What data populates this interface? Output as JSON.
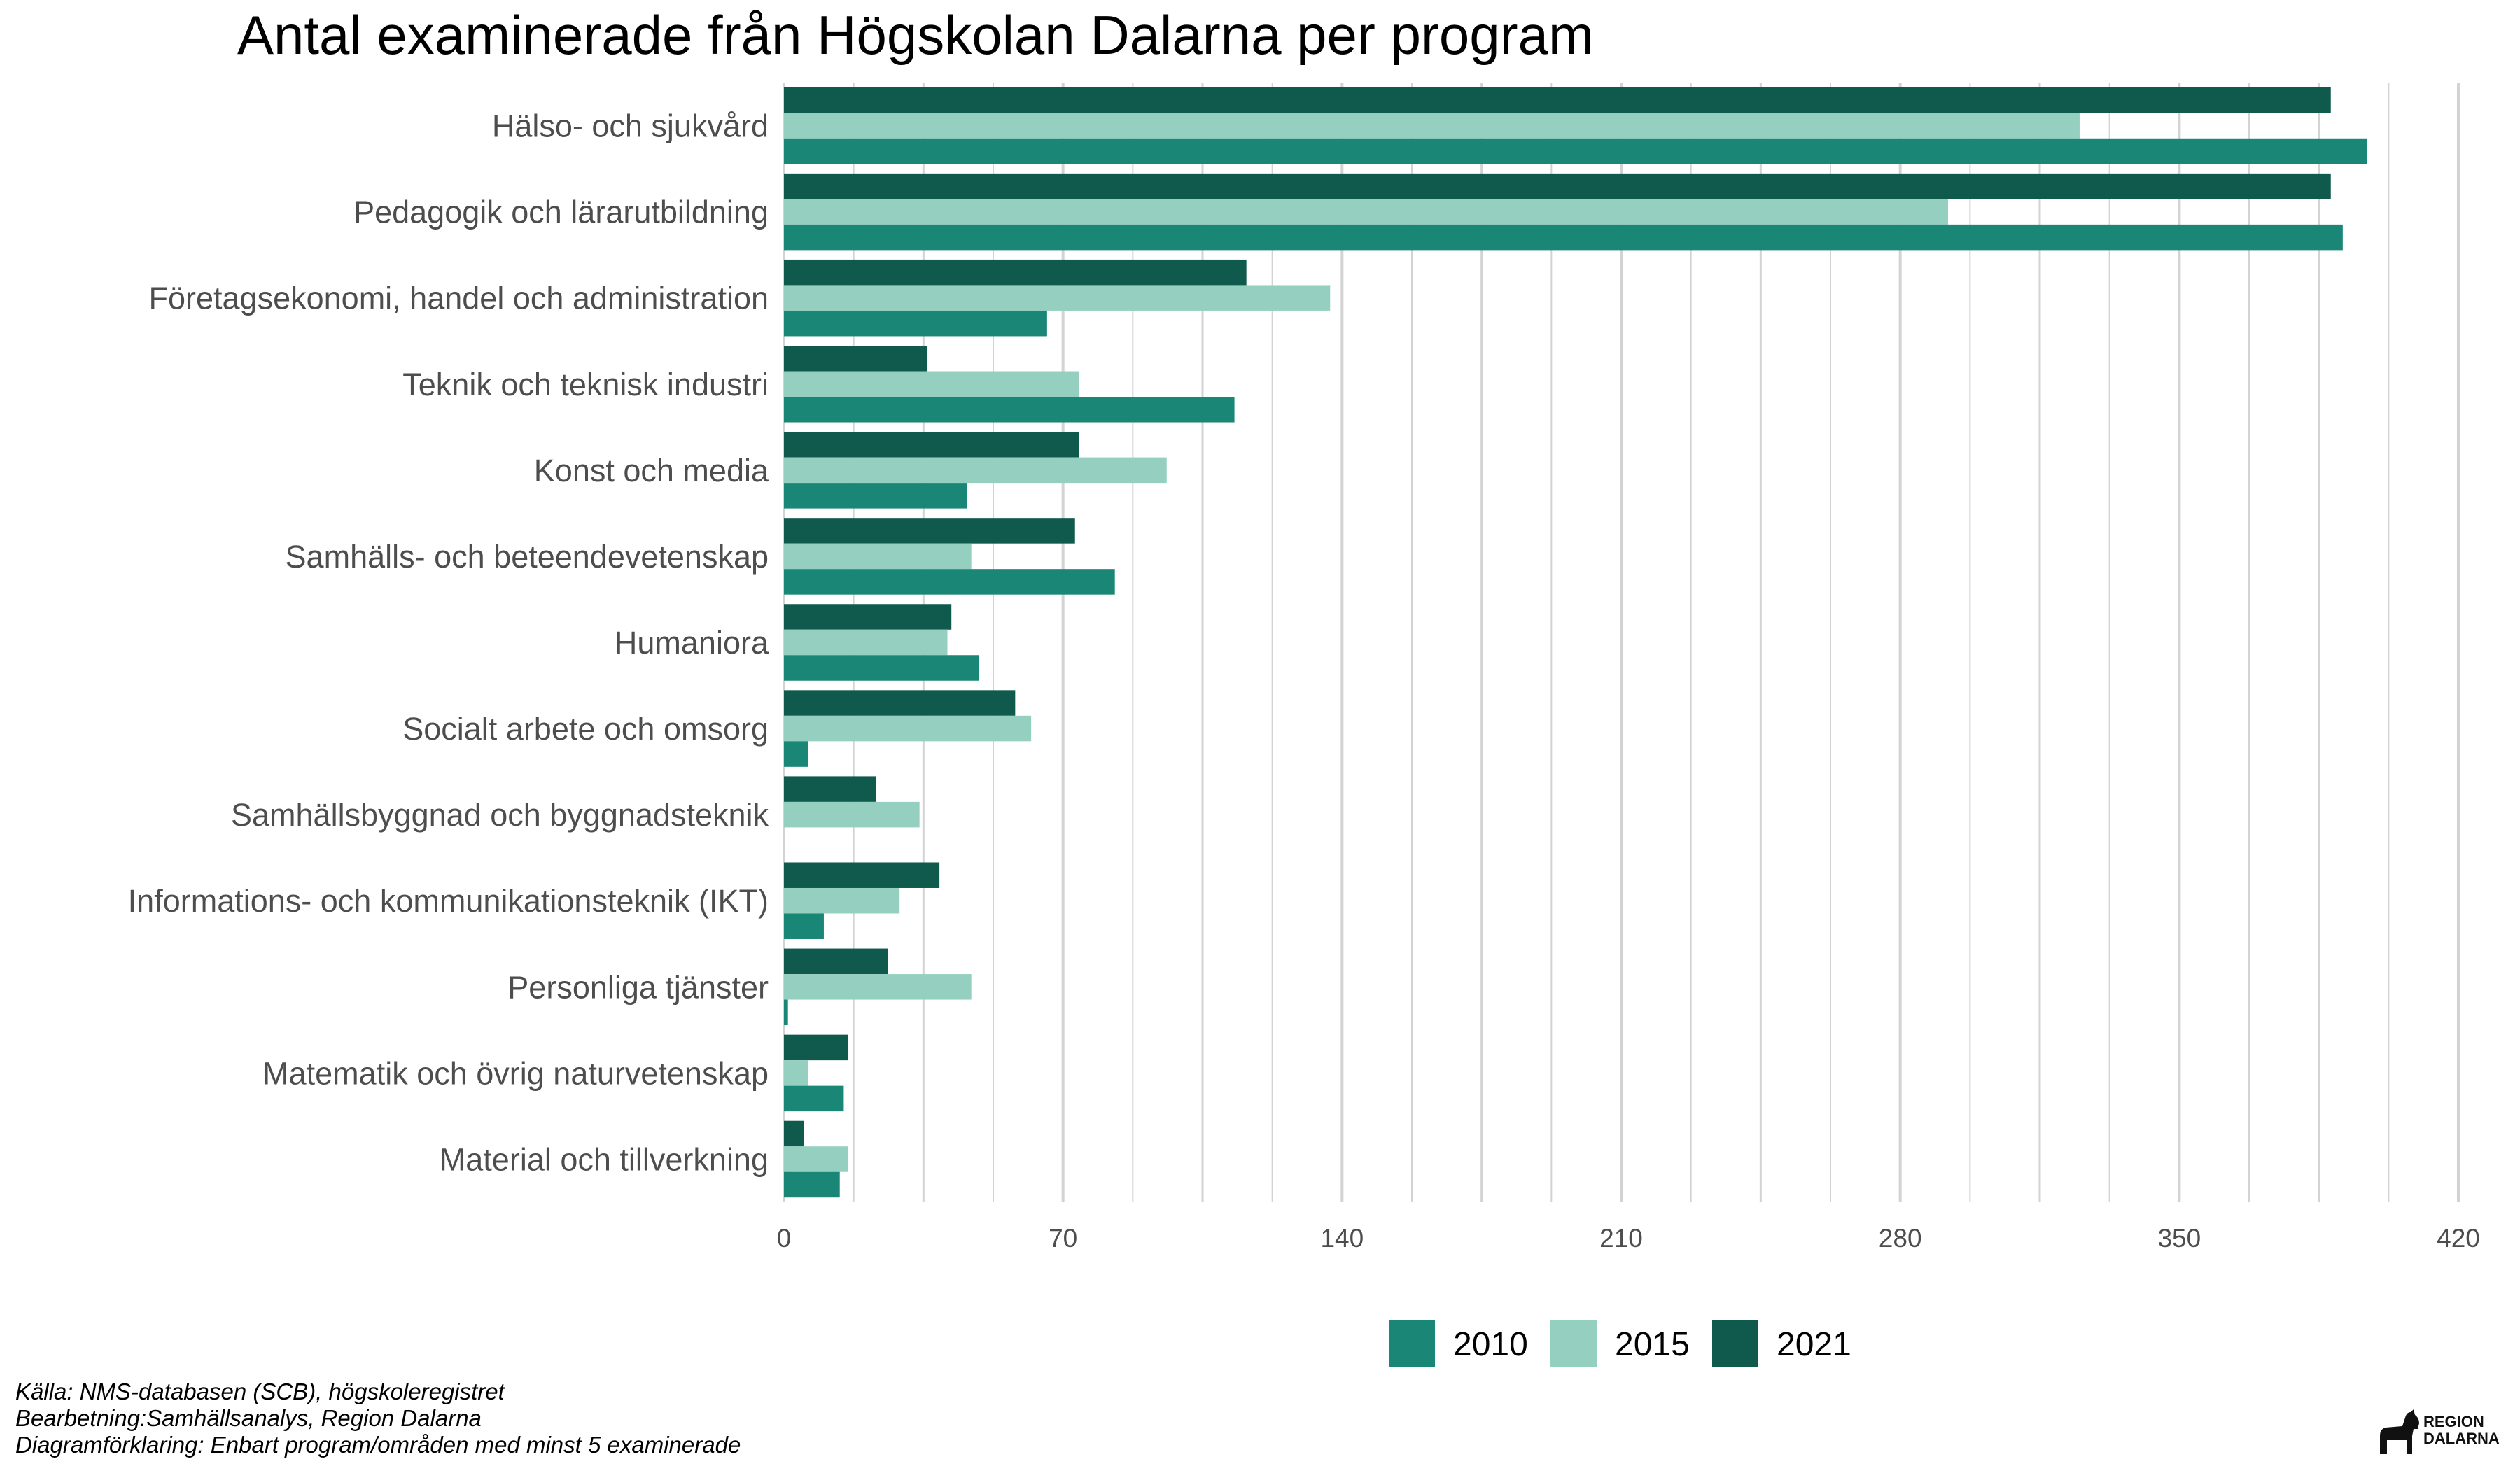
{
  "chart_data": {
    "type": "bar",
    "orientation": "horizontal",
    "title": "Antal examinerade från Högskolan Dalarna per program",
    "categories": [
      "Hälso- och sjukvård",
      "Pedagogik och lärarutbildning",
      "Företagsekonomi, handel och administration",
      "Teknik och teknisk industri",
      "Konst och media",
      "Samhälls- och beteendevetenskap",
      "Humaniora",
      "Socialt arbete och omsorg",
      "Samhällsbyggnad och byggnadsteknik",
      "Informations- och kommunikationsteknik (IKT)",
      "Personliga tjänster",
      "Matematik och övrig naturvetenskap",
      "Material och tillverkning"
    ],
    "series": [
      {
        "name": "2010",
        "color": "#1a8776",
        "values": [
          397,
          391,
          66,
          113,
          46,
          83,
          49,
          6,
          null,
          10,
          1,
          15,
          14
        ]
      },
      {
        "name": "2015",
        "color": "#95cfbf",
        "values": [
          325,
          292,
          137,
          74,
          96,
          47,
          41,
          62,
          34,
          29,
          47,
          6,
          16
        ]
      },
      {
        "name": "2021",
        "color": "#0f5a4c",
        "values": [
          388,
          388,
          116,
          36,
          74,
          73,
          42,
          58,
          23,
          39,
          26,
          16,
          5
        ]
      }
    ],
    "xticks": [
      "0",
      "70",
      "140",
      "210",
      "280",
      "350",
      "420"
    ],
    "xlim": [
      0,
      420
    ],
    "xlabel": "",
    "ylabel": "",
    "grid": "vertical",
    "legend_position": "bottom"
  },
  "caption": {
    "source": "Källa: NMS-databasen (SCB), högskoleregistret",
    "processing": "Bearbetning:Samhällsanalys, Region Dalarna",
    "note": "Diagramförklaring: Enbart program/områden med minst 5 examinerade"
  },
  "logo": {
    "line1": "REGION",
    "line2": "DALARNA"
  }
}
